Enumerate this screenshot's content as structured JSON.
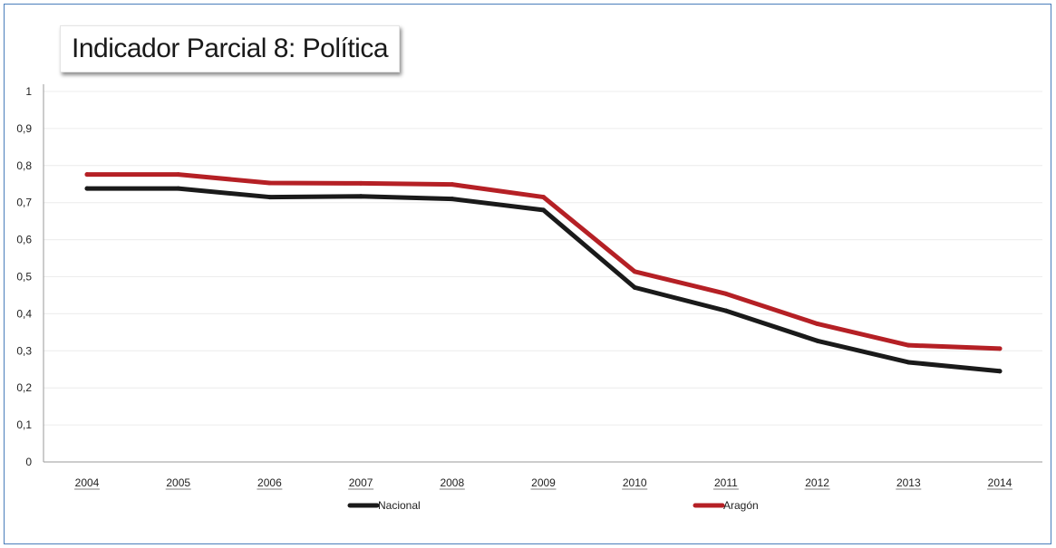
{
  "chart_data": {
    "type": "line",
    "title": "Indicador Parcial 8: Política",
    "xlabel": "",
    "ylabel": "",
    "categories": [
      "2004",
      "2005",
      "2006",
      "2007",
      "2008",
      "2009",
      "2010",
      "2011",
      "2012",
      "2013",
      "2014"
    ],
    "yticks": [
      "0",
      "0,1",
      "0,2",
      "0,3",
      "0,4",
      "0,5",
      "0,6",
      "0,7",
      "0,8",
      "0,9",
      "1"
    ],
    "ylim": [
      0,
      1
    ],
    "grid": true,
    "legend_position": "bottom",
    "series": [
      {
        "name": "Nacional",
        "color": "#1a1a1a",
        "values": [
          0.738,
          0.738,
          0.715,
          0.717,
          0.71,
          0.68,
          0.471,
          0.408,
          0.327,
          0.269,
          0.245
        ]
      },
      {
        "name": "Aragón",
        "color": "#b52025",
        "values": [
          0.776,
          0.776,
          0.753,
          0.752,
          0.749,
          0.715,
          0.514,
          0.454,
          0.373,
          0.315,
          0.306
        ]
      }
    ]
  }
}
